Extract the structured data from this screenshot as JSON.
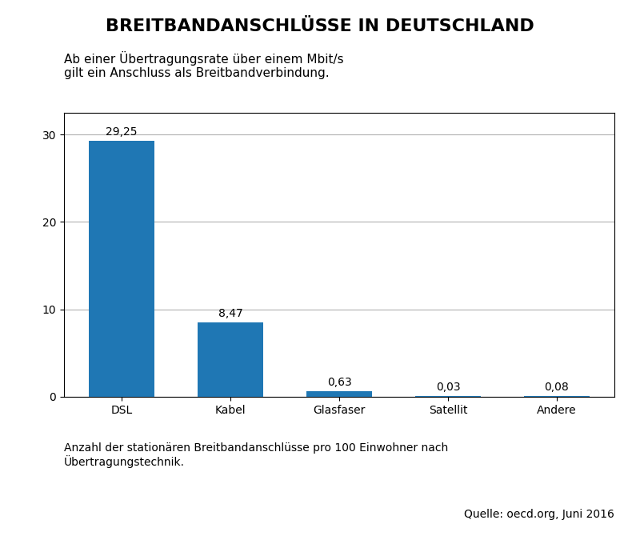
{
  "chart_data": {
    "type": "bar",
    "title": "BREITBANDANSCHLÜSSE IN DEUTSCHLAND",
    "subtitle": "Ab einer Übertragungsrate über einem Mbit/s\ngilt ein Anschluss als Breitbandverbindung.",
    "categories": [
      "DSL",
      "Kabel",
      "Glasfaser",
      "Satellit",
      "Andere"
    ],
    "values": [
      29.25,
      8.47,
      0.63,
      0.03,
      0.08
    ],
    "value_labels": [
      "29,25",
      "8,47",
      "0,63",
      "0,03",
      "0,08"
    ],
    "data_labels": true,
    "ylim": [
      0,
      32.5
    ],
    "yticks": [
      0,
      10,
      20,
      30
    ],
    "grid": true,
    "footnote": "Anzahl der stationären Breitbandanschlüsse pro 100 Einwohner nach\nÜbertragungstechnik.",
    "source": "Quelle: oecd.org, Juni 2016"
  }
}
